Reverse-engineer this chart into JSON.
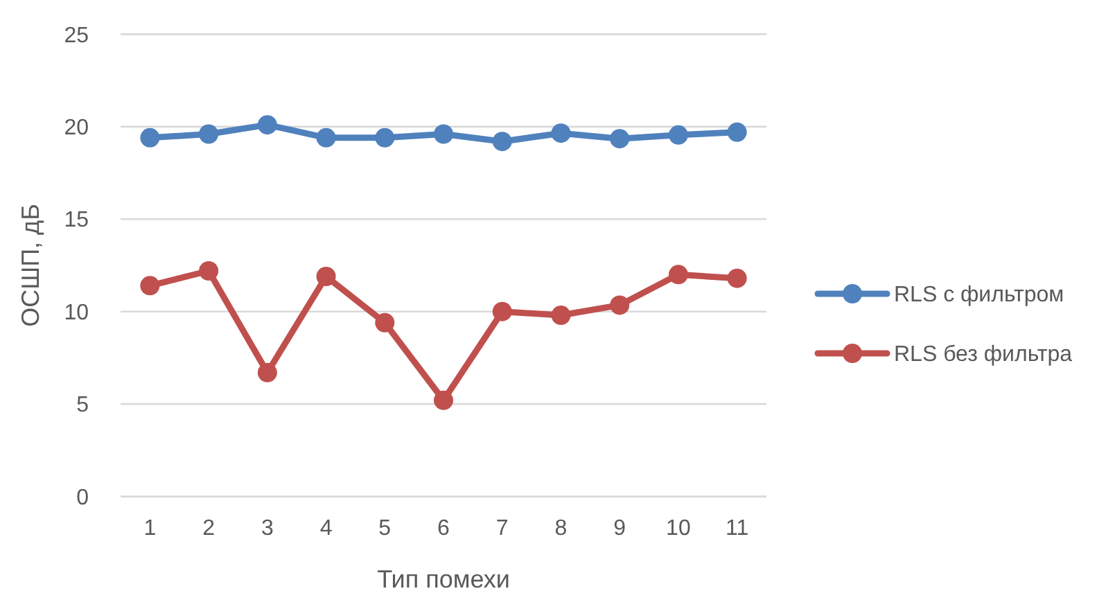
{
  "chart_data": {
    "type": "line",
    "xlabel": "Тип помехи",
    "ylabel": "ОСШП, дБ",
    "categories": [
      "1",
      "2",
      "3",
      "4",
      "5",
      "6",
      "7",
      "8",
      "9",
      "10",
      "11"
    ],
    "ylim": [
      0,
      25
    ],
    "yticks": [
      0,
      5,
      10,
      15,
      20,
      25
    ],
    "grid": "y",
    "legend": "right",
    "marker": "circle",
    "series": [
      {
        "name": "RLS с фильтром",
        "color": "#4f81bd",
        "values": [
          19.4,
          19.6,
          20.1,
          19.4,
          19.4,
          19.6,
          19.2,
          19.65,
          19.35,
          19.55,
          19.7
        ]
      },
      {
        "name": "RLS без фильтра",
        "color": "#c0504d",
        "values": [
          11.4,
          12.2,
          6.7,
          11.9,
          9.4,
          5.2,
          10.0,
          9.8,
          10.35,
          12.0,
          11.8
        ]
      }
    ]
  }
}
